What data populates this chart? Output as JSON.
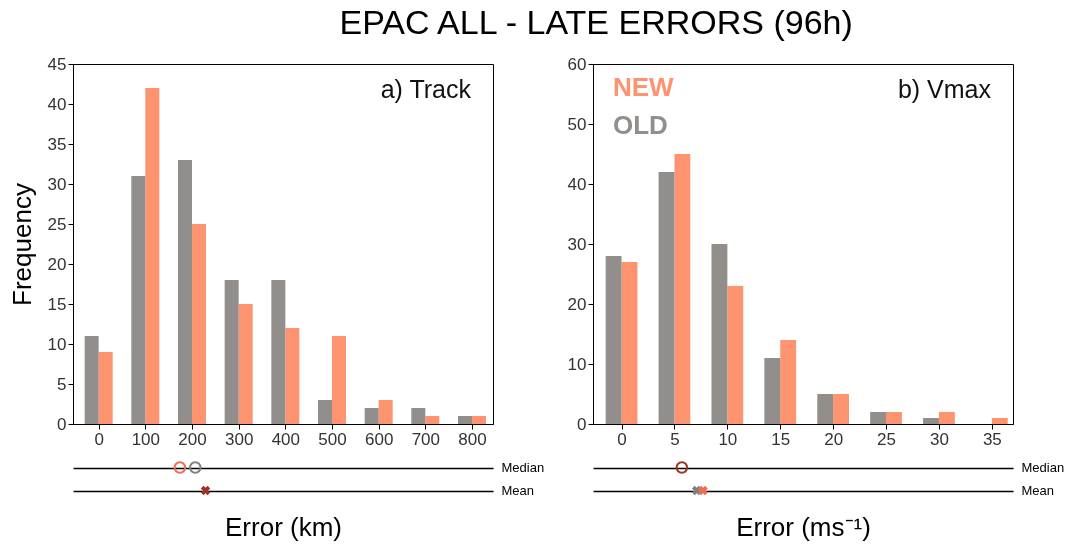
{
  "chart_data": [
    {
      "type": "bar",
      "title": "EPAC ALL - LATE ERRORS (96h)",
      "annotations": [
        "a) Track"
      ],
      "ylabel": "Frequency",
      "x": [
        0,
        100,
        200,
        300,
        400,
        500,
        600,
        700,
        800
      ],
      "xlim": [
        -55,
        845
      ],
      "xticks": [
        0,
        100,
        200,
        300,
        400,
        500,
        600,
        700,
        800
      ],
      "ylim": [
        0,
        45
      ],
      "yticks": [
        0,
        5,
        10,
        15,
        20,
        25,
        30,
        35,
        40,
        45
      ],
      "series": [
        {
          "color": "#fe9370",
          "values": [
            9,
            42,
            25,
            15,
            12,
            11,
            3,
            1,
            1
          ]
        },
        {
          "color": "#928e8c",
          "values": [
            11,
            31,
            33,
            18,
            18,
            3,
            2,
            2,
            1
          ]
        }
      ]
    },
    {
      "type": "bar",
      "annotations": [
        "b) Vmax"
      ],
      "x": [
        0,
        5,
        10,
        15,
        20,
        25,
        30,
        35
      ],
      "xlim": [
        -2.7,
        37
      ],
      "xticks": [
        0,
        5,
        10,
        15,
        20,
        25,
        30,
        35
      ],
      "ylim": [
        0,
        60
      ],
      "yticks": [
        0,
        10,
        20,
        30,
        40,
        50,
        60
      ],
      "legend": "top left",
      "series": [
        {
          "name": "NEW",
          "color": "#fe9370",
          "values": [
            27,
            45,
            23,
            14,
            5,
            2,
            2,
            1
          ]
        },
        {
          "name": "OLD",
          "color": "#928e8c",
          "values": [
            28,
            42,
            30,
            11,
            5,
            2,
            1,
            0
          ]
        }
      ]
    },
    {
      "type": "scatter",
      "orientation": "horizontal",
      "xlabel": "Error (km)",
      "categories": [
        "Median",
        "Mean"
      ],
      "xlim": [
        -55,
        845
      ],
      "xticks": [
        0,
        100,
        200,
        300,
        400,
        500,
        600,
        700,
        800
      ],
      "grid": "y",
      "tick_labels": "y",
      "series": [
        {
          "color": "#f26b4f",
          "marker": "circle",
          "values": [
            174,
            null
          ]
        },
        {
          "color": "#808080",
          "marker": "circle",
          "values": [
            207,
            null
          ]
        },
        {
          "color": "#9b3426",
          "marker": "cross",
          "values": [
            null,
            229
          ]
        }
      ]
    },
    {
      "type": "scatter",
      "orientation": "horizontal",
      "xlabel": "Error (ms⁻¹)",
      "categories": [
        "Median",
        "Mean"
      ],
      "xlim": [
        -2.7,
        37
      ],
      "xticks": [
        0,
        5,
        10,
        15,
        20,
        25,
        30,
        35
      ],
      "grid": "y",
      "tick_labels": "y",
      "series": [
        {
          "color": "#9b3426",
          "marker": "circle",
          "values": [
            5.7,
            null
          ]
        },
        {
          "color": "#808080",
          "marker": "cross",
          "values": [
            null,
            7.1
          ]
        },
        {
          "color": "#f26b4f",
          "marker": "cross",
          "values": [
            null,
            7.7
          ]
        }
      ]
    }
  ]
}
